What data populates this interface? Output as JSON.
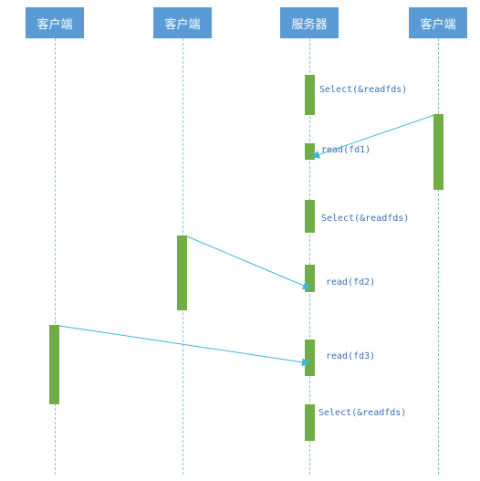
{
  "participants": [
    {
      "label": "客户端"
    },
    {
      "label": "客户端"
    },
    {
      "label": "服务器"
    },
    {
      "label": "客户端"
    }
  ],
  "messages": [
    {
      "label": "Select(&readfds)"
    },
    {
      "label": "read(fd1)"
    },
    {
      "label": "Select(&readfds)"
    },
    {
      "label": "read(fd2)"
    },
    {
      "label": "read(fd3)"
    },
    {
      "label": "Select(&readfds)"
    }
  ],
  "colors": {
    "participant_box": "#5b9bd5",
    "activation": "#70ad47",
    "arrow": "#40b6d4",
    "lifeline": "#7fc3d3",
    "label": "#3b6fb6"
  }
}
